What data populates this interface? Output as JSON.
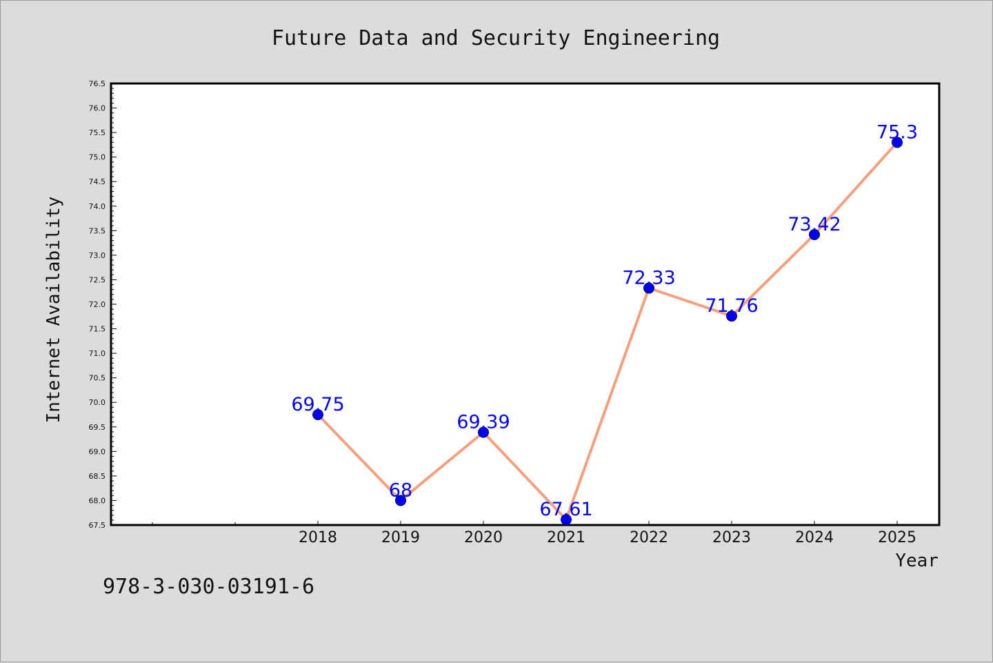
{
  "footer": {
    "code": "978-3-030-03191-6"
  },
  "chart_data": {
    "type": "line",
    "title": "Future Data and Security Engineering",
    "xlabel": "Year",
    "ylabel": "Internet Availability",
    "categories": [
      "2018",
      "2019",
      "2020",
      "2021",
      "2022",
      "2023",
      "2024",
      "2025"
    ],
    "series": [
      {
        "values": [
          69.75,
          68,
          69.39,
          67.61,
          72.33,
          71.76,
          73.42,
          75.3
        ]
      }
    ],
    "data_labels": [
      "69.75",
      "68",
      "69.39",
      "67.61",
      "72.33",
      "71.76",
      "73.42",
      "75.3"
    ],
    "ylim": [
      67.5,
      76.5
    ],
    "yticks": [
      "67.5",
      "68.0",
      "68.5",
      "69.0",
      "69.5",
      "70.0",
      "70.5",
      "71.0",
      "71.5",
      "72.0",
      "72.5",
      "73.0",
      "73.5",
      "74.0",
      "74.5",
      "75.0",
      "75.5",
      "76.0",
      "76.5"
    ],
    "grid": false,
    "line_color": "#f4a07e",
    "marker_color": "#0000ee",
    "label_color": "#0000ee"
  }
}
